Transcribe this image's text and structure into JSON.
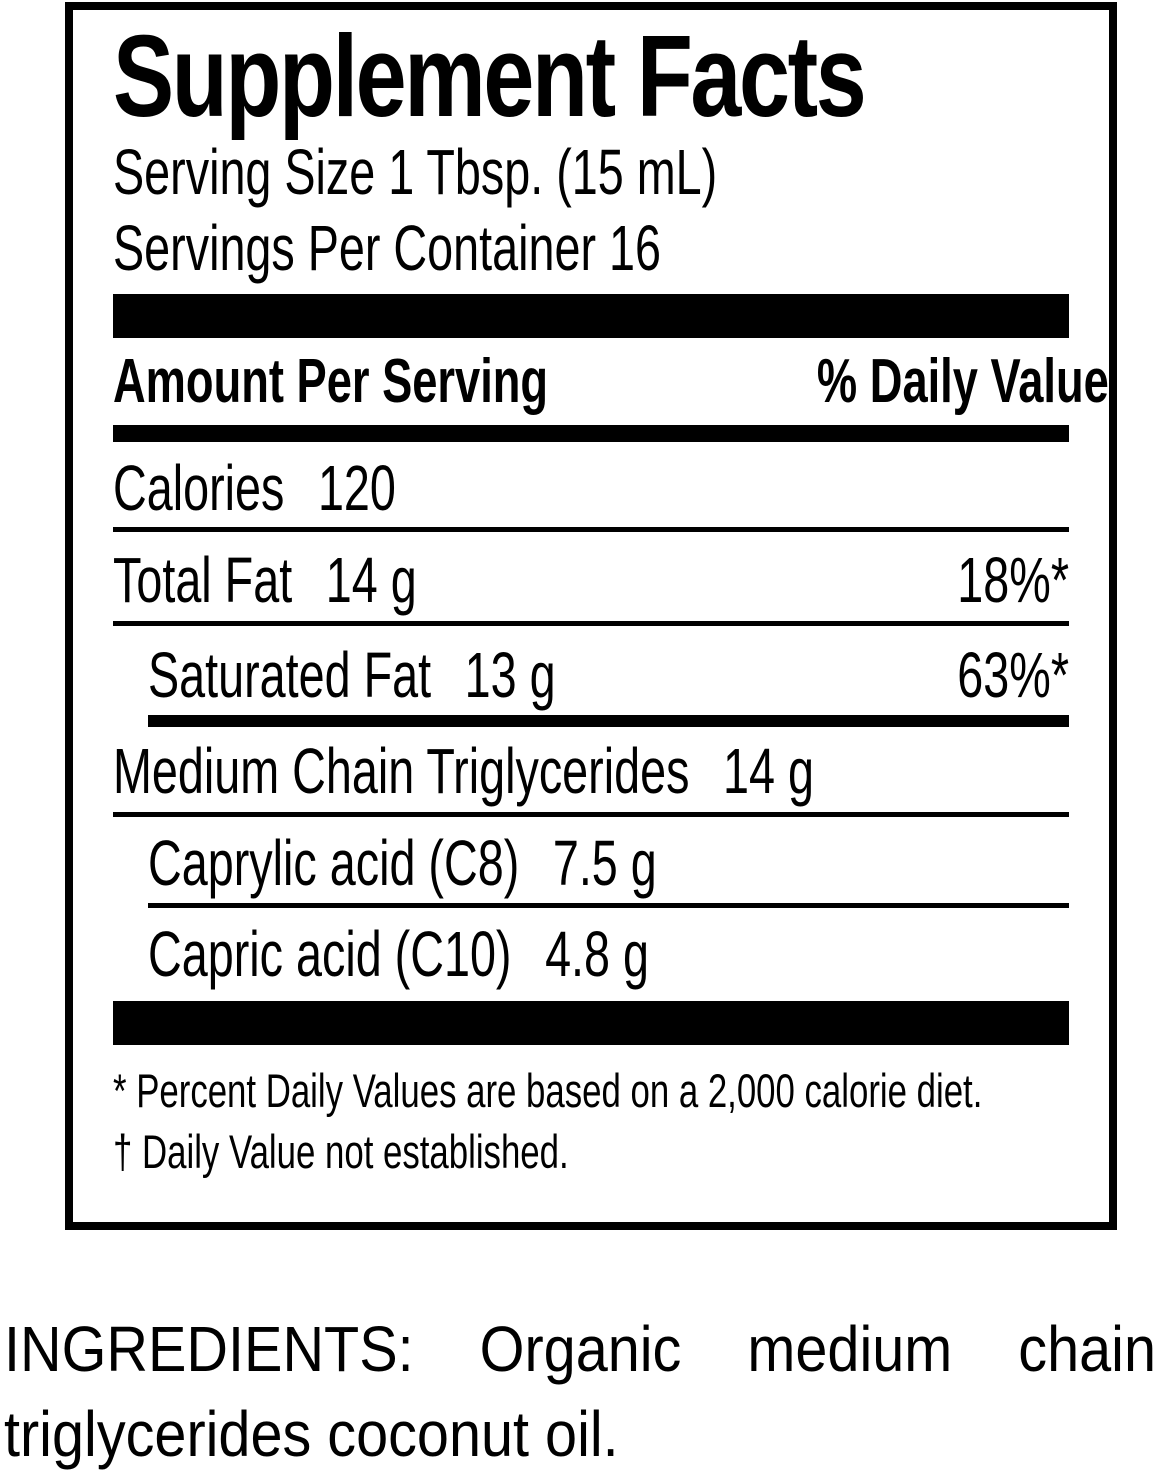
{
  "label": {
    "title": "Supplement Facts",
    "serving_size": "Serving Size 1 Tbsp. (15 mL)",
    "servings_per_container": "Servings Per Container 16",
    "columns": {
      "left": "Amount Per Serving",
      "right": "% Daily Value"
    },
    "rows": [
      {
        "name": "Calories",
        "amount": "120",
        "dv": ""
      },
      {
        "name": "Total Fat",
        "amount": "14 g",
        "dv": "18%*"
      },
      {
        "name": "Saturated Fat",
        "amount": "13 g",
        "dv": "63%*"
      },
      {
        "name": "Medium Chain Triglycerides",
        "amount": "14 g",
        "dv": ""
      },
      {
        "name": "Caprylic acid (C8)",
        "amount": "7.5 g",
        "dv": ""
      },
      {
        "name": "Capric acid (C10)",
        "amount": "4.8 g",
        "dv": ""
      }
    ],
    "footnotes": [
      "* Percent Daily Values are based on a 2,000 calorie diet.",
      "† Daily Value not established."
    ]
  },
  "ingredients": {
    "line1_words": [
      "INGREDIENTS:",
      "Organic",
      "medium",
      "chain"
    ],
    "line2": "triglycerides coconut oil."
  },
  "colors": {
    "ink": "#000000",
    "background": "#ffffff"
  }
}
